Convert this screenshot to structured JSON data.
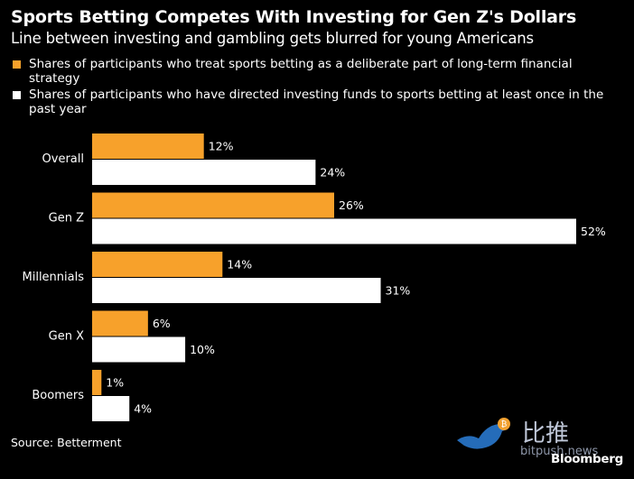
{
  "header": {
    "title": "Sports Betting Competes With Investing for Gen Z's Dollars",
    "subtitle": "Line between investing and gambling gets blurred for young Americans"
  },
  "colors": {
    "orange": "#f7a12b",
    "white": "#ffffff",
    "background": "#000000"
  },
  "chart_data": {
    "type": "bar",
    "orientation": "horizontal",
    "categories": [
      "Overall",
      "Gen Z",
      "Millennials",
      "Gen X",
      "Boomers"
    ],
    "series": [
      {
        "name": "Shares of participants who treat sports betting as a deliberate part of long-term financial strategy",
        "color": "#f7a12b",
        "values": [
          12,
          26,
          14,
          6,
          1
        ],
        "labels": [
          "12%",
          "26%",
          "14%",
          "6%",
          "1%"
        ]
      },
      {
        "name": "Shares of participants who have directed investing funds to sports betting at least once in the past year",
        "color": "#ffffff",
        "values": [
          24,
          52,
          31,
          10,
          4
        ],
        "labels": [
          "24%",
          "52%",
          "31%",
          "10%",
          "4%"
        ]
      }
    ],
    "xlim": [
      0,
      52
    ],
    "grid": false,
    "legend_position": "top-left"
  },
  "footer": {
    "source": "Source: Betterment",
    "brand": "Bloomberg"
  },
  "watermark": {
    "text": "比推",
    "url": "bitpush.news"
  }
}
